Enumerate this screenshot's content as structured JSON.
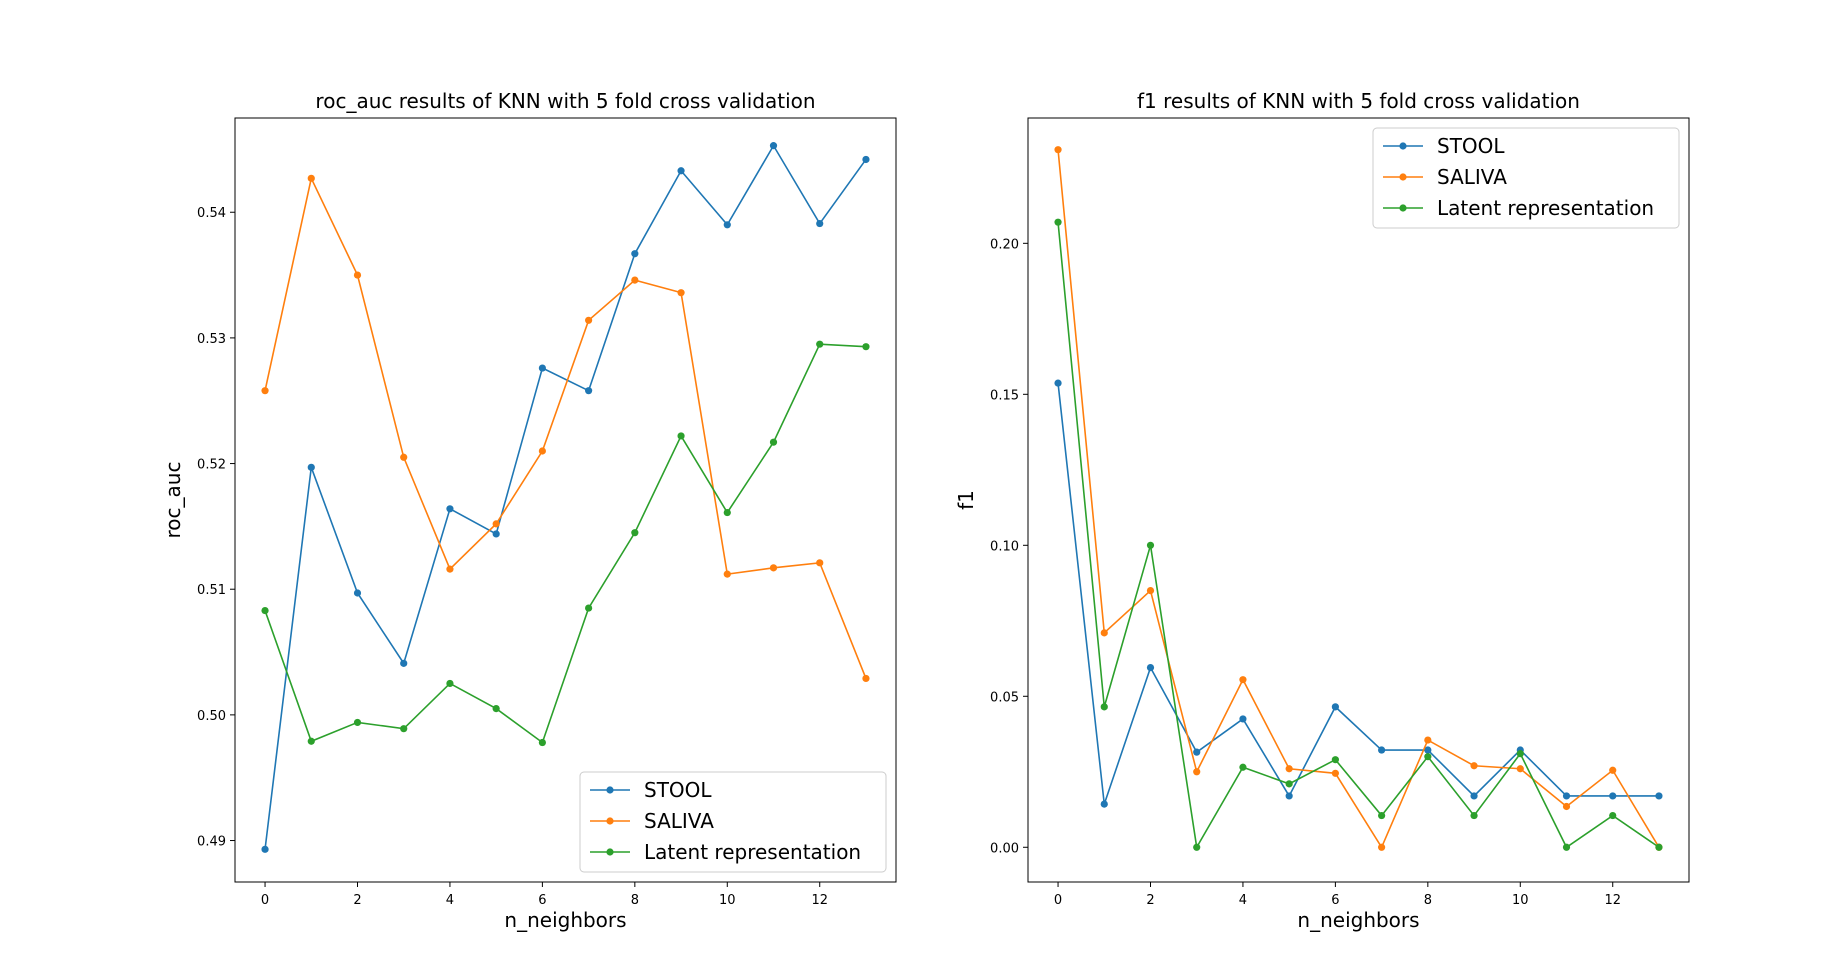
{
  "chart_data": [
    {
      "type": "line",
      "title": "roc_auc results of KNN with 5 fold cross validation",
      "xlabel": "n_neighbors",
      "ylabel": "roc_auc",
      "xlim": [
        -0.65,
        13.65
      ],
      "ylim": [
        0.4867,
        0.5475
      ],
      "xticks": [
        0,
        2,
        4,
        6,
        8,
        10,
        12
      ],
      "yticks": [
        0.49,
        0.5,
        0.51,
        0.52,
        0.53,
        0.54
      ],
      "ytick_labels": [
        "0.49",
        "0.50",
        "0.51",
        "0.52",
        "0.53",
        "0.54"
      ],
      "legend_loc": "lower right",
      "grid": false,
      "x": [
        0,
        1,
        2,
        3,
        4,
        5,
        6,
        7,
        8,
        9,
        10,
        11,
        12,
        13
      ],
      "series": [
        {
          "name": "STOOL",
          "color": "#1f77b4",
          "values": [
            0.4893,
            0.5197,
            0.5097,
            0.5041,
            0.5164,
            0.5144,
            0.5276,
            0.5258,
            0.5367,
            0.5433,
            0.539,
            0.5453,
            0.5391,
            0.5442
          ]
        },
        {
          "name": "SALIVA",
          "color": "#ff7f0e",
          "values": [
            0.5258,
            0.5427,
            0.535,
            0.5205,
            0.5116,
            0.5152,
            0.521,
            0.5314,
            0.5346,
            0.5336,
            0.5112,
            0.5117,
            0.5121,
            0.5029
          ]
        },
        {
          "name": "Latent representation",
          "color": "#2ca02c",
          "values": [
            0.5083,
            0.4979,
            0.4994,
            0.4989,
            0.5025,
            0.5005,
            0.4978,
            0.5085,
            0.5145,
            0.5222,
            0.5161,
            0.5217,
            0.5295,
            0.5293
          ]
        }
      ]
    },
    {
      "type": "line",
      "title": "f1 results of KNN with 5 fold cross validation",
      "xlabel": "n_neighbors",
      "ylabel": "f1",
      "xlim": [
        -0.65,
        13.65
      ],
      "ylim": [
        -0.0115,
        0.2415
      ],
      "xticks": [
        0,
        2,
        4,
        6,
        8,
        10,
        12
      ],
      "yticks": [
        0.0,
        0.05,
        0.1,
        0.15,
        0.2
      ],
      "ytick_labels": [
        "0.00",
        "0.05",
        "0.10",
        "0.15",
        "0.20"
      ],
      "legend_loc": "upper right",
      "grid": false,
      "x": [
        0,
        1,
        2,
        3,
        4,
        5,
        6,
        7,
        8,
        9,
        10,
        11,
        12,
        13
      ],
      "series": [
        {
          "name": "STOOL",
          "color": "#1f77b4",
          "values": [
            0.1537,
            0.0143,
            0.0595,
            0.0315,
            0.0425,
            0.017,
            0.0465,
            0.0322,
            0.0322,
            0.017,
            0.0322,
            0.017,
            0.017,
            0.017
          ]
        },
        {
          "name": "SALIVA",
          "color": "#ff7f0e",
          "values": [
            0.231,
            0.071,
            0.085,
            0.025,
            0.0555,
            0.026,
            0.0245,
            0.0,
            0.0355,
            0.027,
            0.026,
            0.0135,
            0.0255,
            0.0
          ]
        },
        {
          "name": "Latent representation",
          "color": "#2ca02c",
          "values": [
            0.207,
            0.0465,
            0.1,
            0.0,
            0.0265,
            0.021,
            0.029,
            0.0105,
            0.03,
            0.0105,
            0.031,
            0.0,
            0.0105,
            0.0
          ]
        }
      ]
    }
  ]
}
